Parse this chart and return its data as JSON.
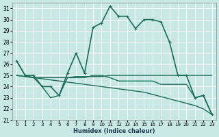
{
  "xlabel": "Humidex (Indice chaleur)",
  "bg_color": "#c8e8e5",
  "grid_color": "#ffffff",
  "line_color": "#1a6b5a",
  "xlim": [
    -0.5,
    23.5
  ],
  "ylim": [
    21,
    31.5
  ],
  "yticks": [
    21,
    22,
    23,
    24,
    25,
    26,
    27,
    28,
    29,
    30,
    31
  ],
  "xticks": [
    0,
    1,
    2,
    3,
    4,
    5,
    6,
    7,
    8,
    9,
    10,
    11,
    12,
    13,
    14,
    15,
    16,
    17,
    18,
    19,
    20,
    21,
    22,
    23
  ],
  "series": [
    {
      "x": [
        0,
        1,
        2,
        3,
        4,
        5,
        6,
        7,
        8,
        9,
        10,
        11,
        12,
        13,
        14,
        15,
        16,
        17,
        18,
        19,
        20,
        21,
        22,
        23
      ],
      "y": [
        25.0,
        24.9,
        24.8,
        24.7,
        24.6,
        24.5,
        24.4,
        24.3,
        24.2,
        24.1,
        24.0,
        23.9,
        23.8,
        23.7,
        23.6,
        23.5,
        23.3,
        23.1,
        22.9,
        22.7,
        22.5,
        22.3,
        22.0,
        21.5
      ],
      "has_markers": false,
      "linewidth": 1.0
    },
    {
      "x": [
        0,
        1,
        2,
        3,
        4,
        5,
        6,
        7,
        8,
        9,
        10,
        11,
        12,
        13,
        14,
        15,
        16,
        17,
        18,
        19,
        20,
        21,
        22,
        23
      ],
      "y": [
        25.0,
        24.9,
        24.8,
        24.8,
        24.8,
        24.8,
        24.8,
        24.9,
        24.9,
        24.9,
        24.9,
        25.0,
        25.0,
        25.0,
        25.0,
        25.0,
        25.0,
        25.0,
        25.0,
        25.0,
        25.0,
        25.0,
        25.0,
        25.0
      ],
      "has_markers": false,
      "linewidth": 1.0
    },
    {
      "x": [
        0,
        1,
        2,
        3,
        4,
        5,
        6,
        7,
        8,
        9,
        10,
        11,
        12,
        13,
        14,
        15,
        16,
        17,
        18,
        19,
        20,
        21,
        22,
        23
      ],
      "y": [
        26.3,
        25.0,
        24.8,
        24.0,
        23.0,
        23.2,
        24.8,
        24.8,
        24.8,
        25.0,
        25.0,
        24.8,
        24.5,
        24.5,
        24.5,
        24.5,
        24.5,
        24.2,
        24.2,
        24.2,
        24.2,
        23.0,
        23.2,
        21.5
      ],
      "has_markers": false,
      "linewidth": 1.0
    },
    {
      "x": [
        0,
        1,
        2,
        3,
        4,
        5,
        6,
        7,
        8,
        9,
        10,
        11,
        12,
        13,
        14,
        15,
        16,
        17,
        18,
        19,
        20,
        21,
        22,
        23
      ],
      "y": [
        26.3,
        25.0,
        25.0,
        24.0,
        24.0,
        23.2,
        25.2,
        27.0,
        25.2,
        29.3,
        29.7,
        31.2,
        30.3,
        30.3,
        29.2,
        30.0,
        30.0,
        29.8,
        28.0,
        25.0,
        25.0,
        23.0,
        23.2,
        21.5
      ],
      "has_markers": true,
      "linewidth": 1.2
    }
  ]
}
